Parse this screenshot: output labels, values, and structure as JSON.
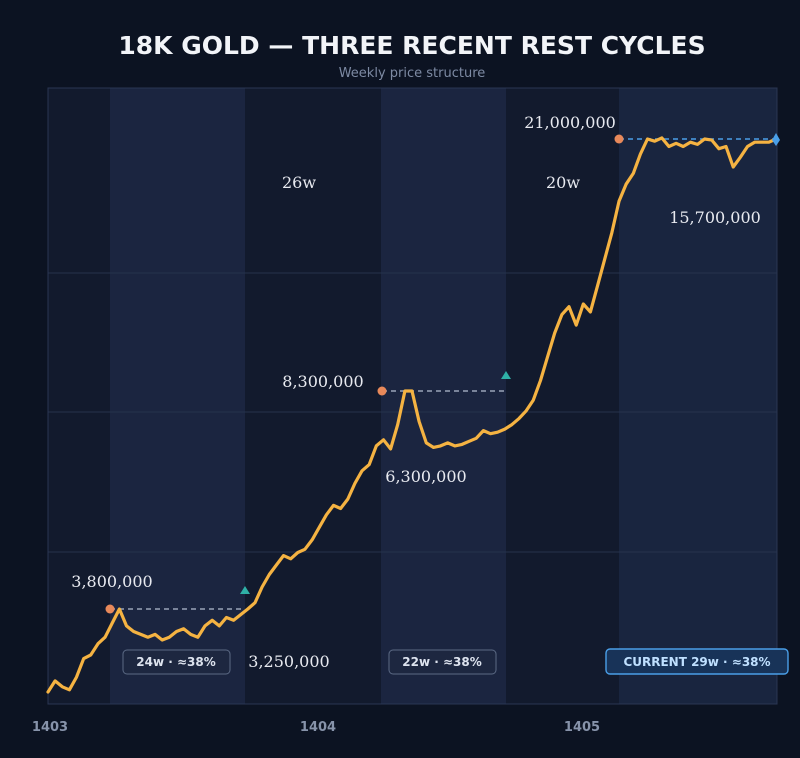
{
  "chart_data": {
    "type": "line",
    "title": "18K GOLD — THREE RECENT REST CYCLES",
    "subtitle": "Weekly price structure",
    "xlabel": "",
    "ylabel": "",
    "x_ticks": [
      "1403",
      "1404",
      "1405"
    ],
    "grid": true,
    "legend": "none",
    "series": [
      {
        "values": [
          2550000,
          2700000,
          2620000,
          2580000,
          2750000,
          3000000,
          3050000,
          3200000,
          3300000,
          3550000,
          3800000,
          3500000,
          3400000,
          3350000,
          3300000,
          3350000,
          3250000,
          3300000,
          3400000,
          3450000,
          3350000,
          3300000,
          3500000,
          3600000,
          3500000,
          3650000,
          3600000,
          3700000,
          3800000,
          3900000,
          4150000,
          4350000,
          4500000,
          4650000,
          4600000,
          4700000,
          4750000,
          4900000,
          5100000,
          5300000,
          5450000,
          5400000,
          5550000,
          5800000,
          6000000,
          6100000,
          6500000,
          6700000,
          6400000,
          7200000,
          8300000,
          8300000,
          7300000,
          6600000,
          6450000,
          6500000,
          6600000,
          6500000,
          6550000,
          6650000,
          6750000,
          7000000,
          6900000,
          6950000,
          7050000,
          7200000,
          7400000,
          7650000,
          8000000,
          8700000,
          9600000,
          10500000,
          11200000,
          11500000,
          10800000,
          11600000,
          11300000,
          12300000,
          13300000,
          14300000,
          15500000,
          16800000,
          17800000,
          19600000,
          21000000,
          20800000,
          21100000,
          20300000,
          20600000,
          20300000,
          20700000,
          20500000,
          21000000,
          20900000,
          20100000,
          20300000,
          18400000,
          19300000,
          20300000,
          20700000,
          20700000,
          20700000,
          21000000
        ]
      }
    ],
    "rest_cycles": [
      {
        "peak_label": "3,800,000",
        "low_label": "3,250,000",
        "badge": "24w  ·  ≈38%",
        "color": "#e8895a"
      },
      {
        "peak_label": "8,300,000",
        "low_label": "6,300,000",
        "badge": "22w  ·  ≈38%",
        "color": "#e8895a"
      },
      {
        "peak_label": "21,000,000",
        "low_label": "15,700,000",
        "badge": "CURRENT 29w  ·  ≈38%",
        "color": "#e8895a",
        "current": true
      }
    ],
    "advance_labels": [
      "26w",
      "20w"
    ],
    "colors": {
      "line": "#f5b342",
      "peak_marker": "#e8895a",
      "breakout_marker": "#2fb0a6",
      "current_marker": "#4a9fe8",
      "dashed_level": "#9aa4b8",
      "dashed_level_current": "#4a9fe8",
      "background": "#0c1322",
      "plot_background": "#141c30",
      "rest_band": "#1b2540",
      "current_band": "#1a2645"
    }
  }
}
